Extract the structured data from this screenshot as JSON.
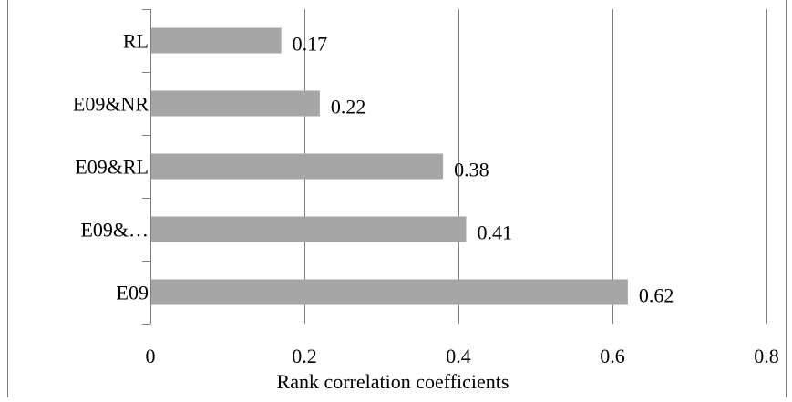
{
  "chart_data": {
    "type": "bar",
    "orientation": "horizontal",
    "categories": [
      "RL",
      "E09&NR",
      "E09&RL",
      "E09&…",
      "E09"
    ],
    "values": [
      0.17,
      0.22,
      0.38,
      0.41,
      0.62
    ],
    "data_labels": [
      "0.17",
      "0.22",
      "0.38",
      "0.41",
      "0.62"
    ],
    "x_ticks": [
      "0",
      "0.2",
      "0.4",
      "0.6",
      "0.8"
    ],
    "xlim": [
      0,
      0.8
    ],
    "xlabel": "Rank correlation coefficients",
    "ylabel": "",
    "title": "",
    "grid": "vertical gridlines",
    "legend": "none",
    "bar_color": "#a6a6a6",
    "grid_color": "#7f7f7f",
    "axis_color": "#7f7f7f",
    "text_color": "#000000"
  }
}
